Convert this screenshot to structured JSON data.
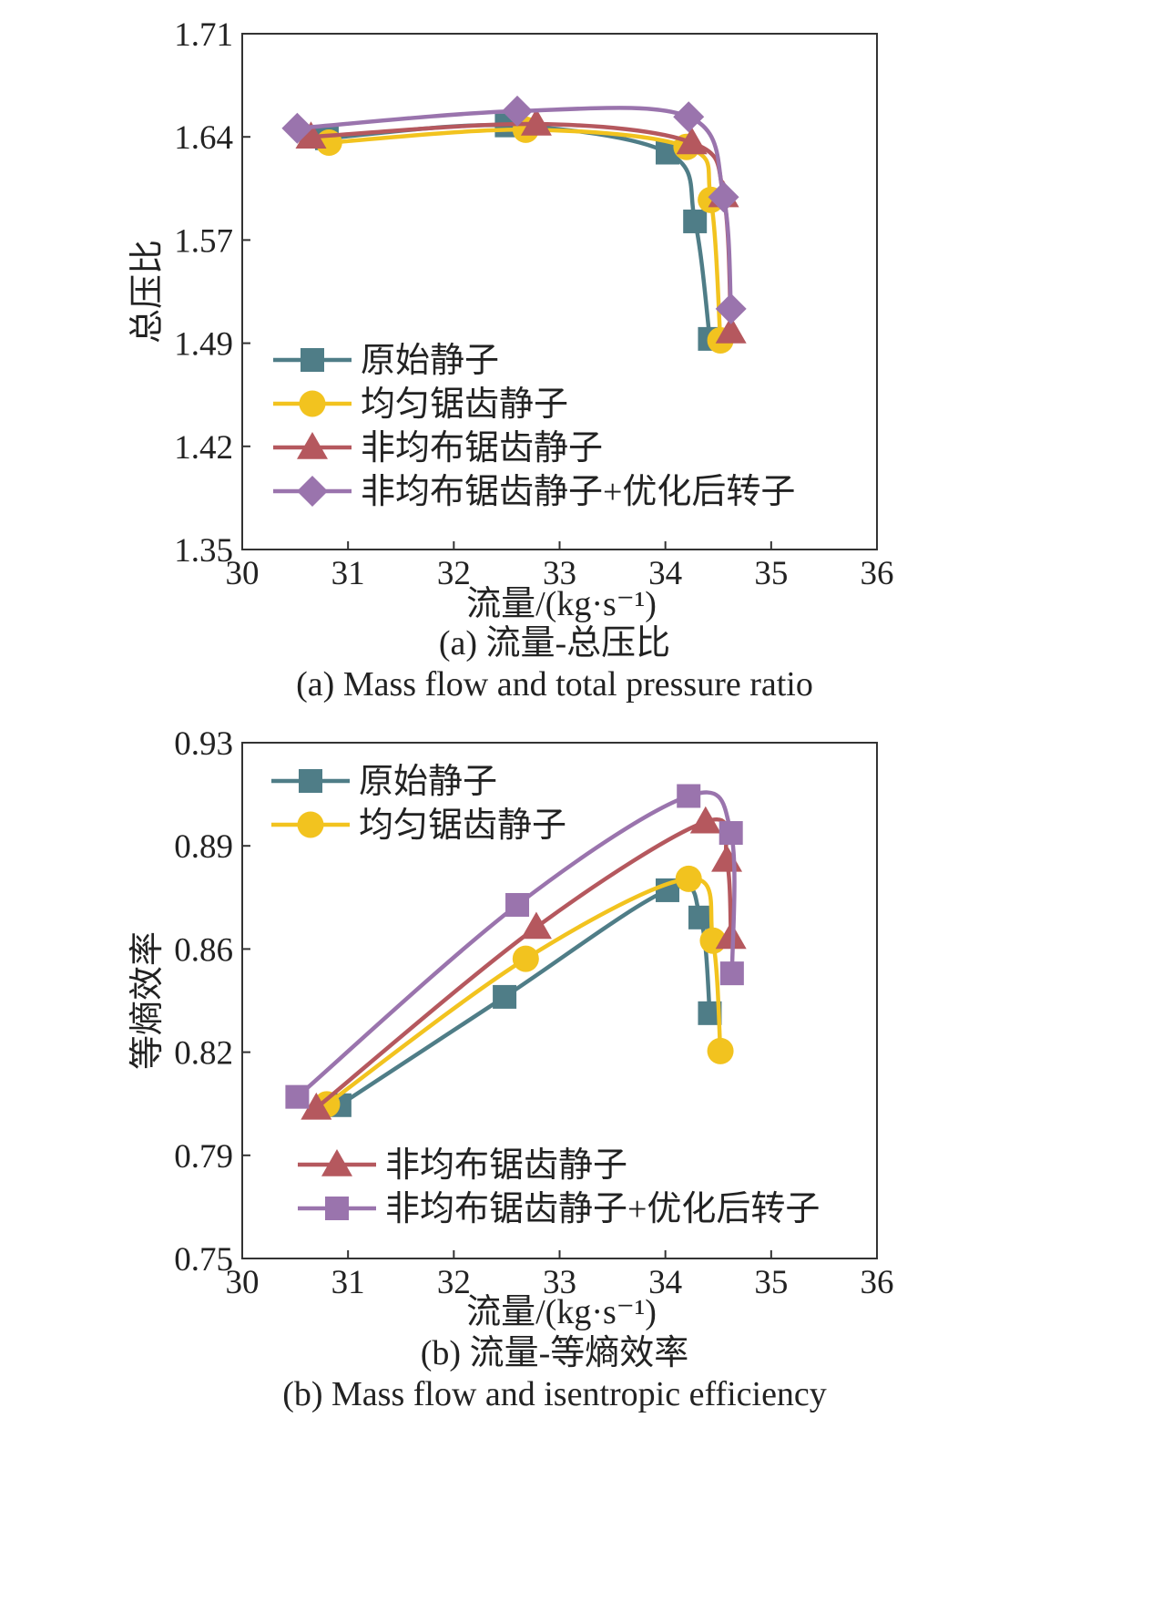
{
  "charts": [
    {
      "id": "a",
      "type": "line",
      "caption_cn": "(a) 流量-总压比",
      "caption_en": "(a) Mass flow and total pressure ratio",
      "xlabel": "流量/(kg·s⁻¹)",
      "ylabel": "总压比",
      "xlim": [
        30,
        36
      ],
      "ylim": [
        1.35,
        1.71
      ],
      "xticks": [
        "30",
        "31",
        "32",
        "33",
        "34",
        "35",
        "36"
      ],
      "yticks": [
        "1.35",
        "1.42",
        "1.49",
        "1.57",
        "1.64",
        "1.71"
      ],
      "legend_groups": [
        [
          0,
          1,
          2,
          3
        ]
      ],
      "series": [
        {
          "name": "原始静子",
          "color": "#4f7d87",
          "marker": "square",
          "x": [
            30.8,
            32.5,
            34.02,
            34.28,
            34.42
          ],
          "y": [
            1.637,
            1.646,
            1.627,
            1.579,
            1.497
          ]
        },
        {
          "name": "均匀锯齿静子",
          "color": "#f2c31f",
          "marker": "circle",
          "x": [
            30.82,
            32.68,
            34.2,
            34.43,
            34.52
          ],
          "y": [
            1.634,
            1.643,
            1.631,
            1.594,
            1.496
          ]
        },
        {
          "name": "非均布锯齿静子",
          "color": "#b5585e",
          "marker": "triangle",
          "x": [
            30.65,
            32.78,
            34.25,
            34.55,
            34.62
          ],
          "y": [
            1.638,
            1.647,
            1.634,
            1.597,
            1.502
          ]
        },
        {
          "name": "非均布锯齿静子+优化后转子",
          "color": "#9a74ad",
          "marker": "diamond",
          "x": [
            30.52,
            32.6,
            34.22,
            34.55,
            34.62
          ],
          "y": [
            1.644,
            1.656,
            1.652,
            1.596,
            1.518
          ]
        }
      ]
    },
    {
      "id": "b",
      "type": "line",
      "caption_cn": "(b) 流量-等熵效率",
      "caption_en": "(b) Mass flow and isentropic efficiency",
      "xlabel": "流量/(kg·s⁻¹)",
      "ylabel": "等熵效率",
      "xlim": [
        30,
        36
      ],
      "ylim": [
        0.75,
        0.93
      ],
      "xticks": [
        "30",
        "31",
        "32",
        "33",
        "34",
        "35",
        "36"
      ],
      "yticks": [
        "0.75",
        "0.79",
        "0.82",
        "0.86",
        "0.89",
        "0.93"
      ],
      "legend_groups": [
        [
          0,
          1
        ],
        [
          2,
          3
        ]
      ],
      "series": [
        {
          "name": "原始静子",
          "color": "#4f7d87",
          "marker": "square",
          "x": [
            30.92,
            32.48,
            34.02,
            34.33,
            34.42
          ],
          "y": [
            0.8035,
            0.8413,
            0.8785,
            0.869,
            0.8356
          ]
        },
        {
          "name": "均匀锯齿静子",
          "color": "#f2c31f",
          "marker": "circle",
          "x": [
            30.8,
            32.68,
            34.22,
            34.45,
            34.52
          ],
          "y": [
            0.8038,
            0.8546,
            0.8825,
            0.8609,
            0.8224
          ]
        },
        {
          "name": "非均布锯齿静子",
          "color": "#b5585e",
          "marker": "triangle",
          "x": [
            30.7,
            32.78,
            34.38,
            34.58,
            34.62
          ],
          "y": [
            0.8025,
            0.8656,
            0.9024,
            0.889,
            0.8621
          ]
        },
        {
          "name": "非均布锯齿静子+优化后转子",
          "color": "#9a74ad",
          "marker": "square",
          "x": [
            30.52,
            32.6,
            34.22,
            34.62,
            34.63
          ],
          "y": [
            0.8064,
            0.8734,
            0.9114,
            0.8985,
            0.8495
          ]
        }
      ]
    }
  ]
}
